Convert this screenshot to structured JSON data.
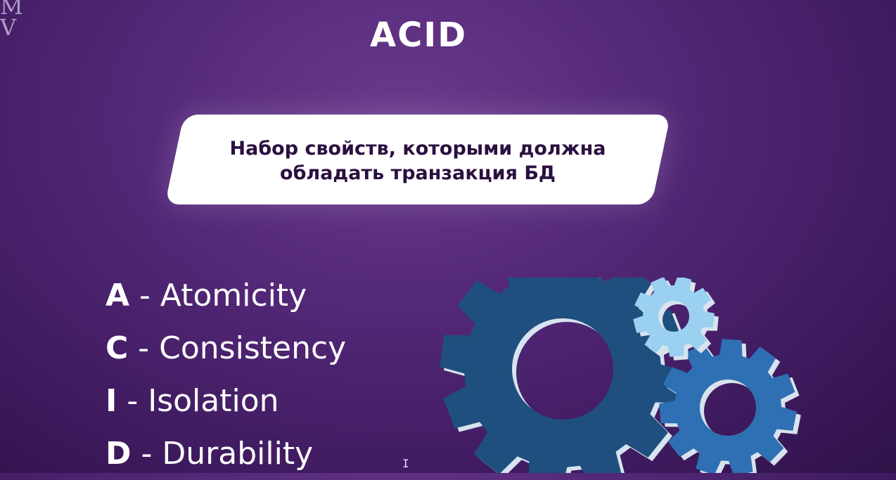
{
  "watermark": {
    "line1": "M",
    "line2": "V"
  },
  "title": "ACID",
  "definition": {
    "line1": "Набор свойств, которыми должна",
    "line2": "обладать транзакция БД"
  },
  "properties": [
    {
      "letter": "A",
      "separator": " - ",
      "name": "Atomicity"
    },
    {
      "letter": "C",
      "separator": " - ",
      "name": "Consistency"
    },
    {
      "letter": "I",
      "separator": " - ",
      "name": "Isolation"
    },
    {
      "letter": "D",
      "separator": " - ",
      "name": "Durability"
    }
  ],
  "illustration": {
    "icon": "gears-icon",
    "colors": {
      "dark_gear": "#1f4f7e",
      "mid_gear": "#2f6fb3",
      "light_gear": "#9ad0f0",
      "edge": "#d7e3ee"
    }
  },
  "cursor_icon": "text-cursor-icon"
}
